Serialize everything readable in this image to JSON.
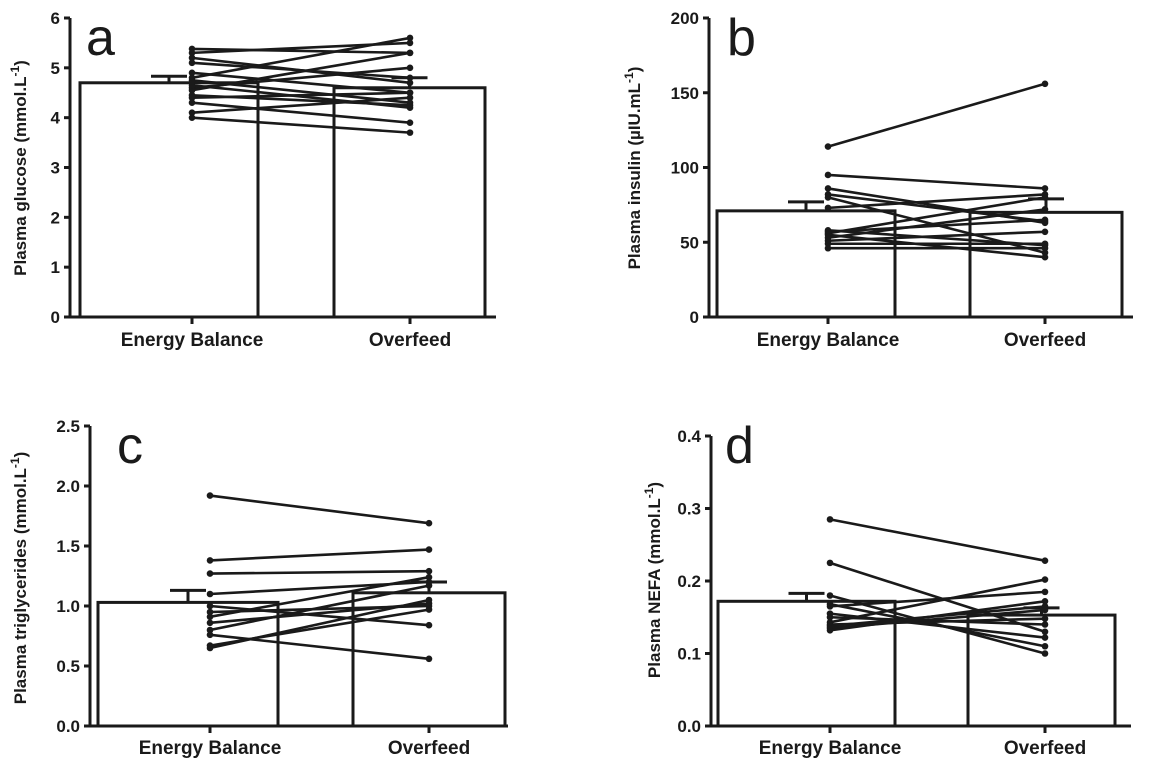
{
  "chart_data": [
    {
      "type": "bar",
      "panel_label": "a",
      "categories": [
        "Energy Balance",
        "Overfeed"
      ],
      "values": [
        4.7,
        4.6
      ],
      "error_upper": [
        4.83,
        4.8
      ],
      "ylabel": "Plasma glucose (mmol.L",
      "ylabel_sup": "-1",
      "ylabel_close": ")",
      "ylim": [
        0,
        6
      ],
      "yticks": [
        0,
        1,
        2,
        3,
        4,
        5,
        6
      ],
      "ytick_labels": [
        "0",
        "1",
        "2",
        "3",
        "4",
        "5",
        "6"
      ],
      "paired_points": [
        [
          5.38,
          5.3
        ],
        [
          5.3,
          5.5
        ],
        [
          5.2,
          4.7
        ],
        [
          5.1,
          4.8
        ],
        [
          4.9,
          4.5
        ],
        [
          4.8,
          5.6
        ],
        [
          4.75,
          4.3
        ],
        [
          4.6,
          5.0
        ],
        [
          4.55,
          5.3
        ],
        [
          4.45,
          4.25
        ],
        [
          4.4,
          4.5
        ],
        [
          4.3,
          3.9
        ],
        [
          4.1,
          4.4
        ],
        [
          4.0,
          3.7
        ],
        [
          4.65,
          4.2
        ]
      ]
    },
    {
      "type": "bar",
      "panel_label": "b",
      "categories": [
        "Energy Balance",
        "Overfeed"
      ],
      "values": [
        71,
        70
      ],
      "error_upper": [
        77,
        79
      ],
      "ylabel": "Plasma insulin (µIU.mL",
      "ylabel_sup": "-1",
      "ylabel_close": ")",
      "ylim": [
        0,
        200
      ],
      "yticks": [
        0,
        50,
        100,
        150,
        200
      ],
      "ytick_labels": [
        "0",
        "50",
        "100",
        "150",
        "200"
      ],
      "paired_points": [
        [
          114,
          156
        ],
        [
          95,
          86
        ],
        [
          86,
          63
        ],
        [
          82,
          64
        ],
        [
          80,
          43
        ],
        [
          73,
          82
        ],
        [
          58,
          48
        ],
        [
          56,
          80
        ],
        [
          55,
          40
        ],
        [
          53,
          72
        ],
        [
          51,
          57
        ],
        [
          49,
          49
        ],
        [
          46,
          46
        ],
        [
          57,
          65
        ]
      ]
    },
    {
      "type": "bar",
      "panel_label": "c",
      "categories": [
        "Energy Balance",
        "Overfeed"
      ],
      "values": [
        1.03,
        1.11
      ],
      "error_upper": [
        1.13,
        1.2
      ],
      "ylabel": "Plasma triglycerides (mmol.L",
      "ylabel_sup": "-1",
      "ylabel_close": ")",
      "ylim": [
        0,
        2.5
      ],
      "yticks": [
        0,
        0.5,
        1.0,
        1.5,
        2.0,
        2.5
      ],
      "ytick_labels": [
        "0.0",
        "0.5",
        "1.0",
        "1.5",
        "2.0",
        "2.5"
      ],
      "paired_points": [
        [
          1.92,
          1.69
        ],
        [
          1.38,
          1.47
        ],
        [
          1.27,
          1.29
        ],
        [
          1.1,
          1.2
        ],
        [
          1.0,
          0.84
        ],
        [
          0.91,
          1.24
        ],
        [
          0.86,
          1.02
        ],
        [
          0.8,
          1.17
        ],
        [
          0.76,
          0.56
        ],
        [
          0.67,
          0.97
        ],
        [
          0.65,
          1.05
        ],
        [
          0.95,
          1.0
        ]
      ]
    },
    {
      "type": "bar",
      "panel_label": "d",
      "categories": [
        "Energy Balance",
        "Overfeed"
      ],
      "values": [
        0.172,
        0.153
      ],
      "error_upper": [
        0.183,
        0.163
      ],
      "ylabel": "Plasma NEFA (mmol.L",
      "ylabel_sup": "-1",
      "ylabel_close": ")",
      "ylim": [
        0,
        0.4
      ],
      "yticks": [
        0,
        0.1,
        0.2,
        0.3,
        0.4
      ],
      "ytick_labels": [
        "0.0",
        "0.1",
        "0.2",
        "0.3",
        "0.4"
      ],
      "paired_points": [
        [
          0.285,
          0.228
        ],
        [
          0.225,
          0.13
        ],
        [
          0.18,
          0.1
        ],
        [
          0.168,
          0.11
        ],
        [
          0.165,
          0.185
        ],
        [
          0.155,
          0.122
        ],
        [
          0.143,
          0.202
        ],
        [
          0.14,
          0.148
        ],
        [
          0.138,
          0.165
        ],
        [
          0.135,
          0.16
        ],
        [
          0.132,
          0.172
        ],
        [
          0.15,
          0.14
        ]
      ]
    }
  ]
}
